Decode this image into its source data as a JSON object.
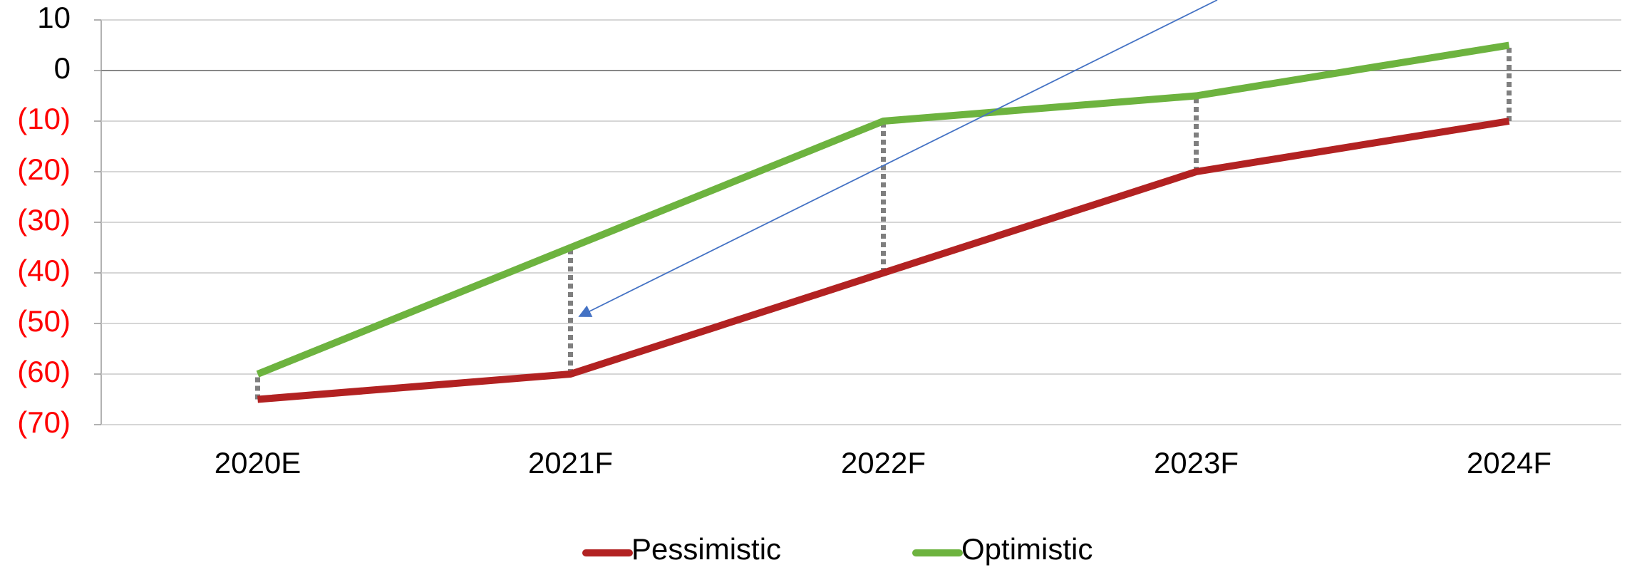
{
  "chart_data": {
    "type": "line",
    "categories": [
      "2020E",
      "2021F",
      "2022F",
      "2023F",
      "2024F"
    ],
    "series": [
      {
        "name": "Pessimistic",
        "color": "#b22222",
        "values": [
          -65,
          -60,
          -40,
          -20,
          -10
        ]
      },
      {
        "name": "Optimistic",
        "color": "#6db33f",
        "values": [
          -60,
          -35,
          -10,
          -5,
          5
        ]
      }
    ],
    "ylim": [
      -70,
      10
    ],
    "yticks": [
      {
        "value": -70,
        "label": "(70)"
      },
      {
        "value": -60,
        "label": "(60)"
      },
      {
        "value": -50,
        "label": "(50)"
      },
      {
        "value": -40,
        "label": "(40)"
      },
      {
        "value": -30,
        "label": "(30)"
      },
      {
        "value": -20,
        "label": "(20)"
      },
      {
        "value": -10,
        "label": "(10)"
      },
      0,
      10
    ],
    "negative_tick_color": "#ff0000",
    "grid": true,
    "drop_lines": true,
    "legend": "bottom"
  }
}
